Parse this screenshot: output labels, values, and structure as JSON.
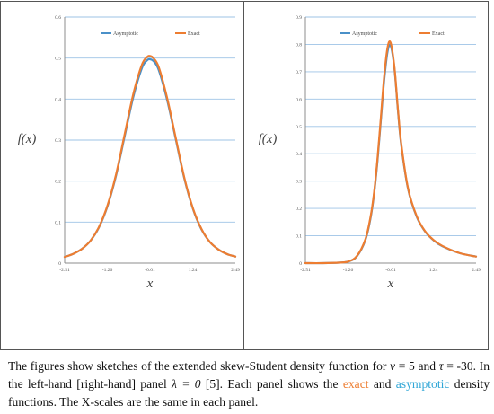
{
  "colors": {
    "asymptotic": "#4a90c8",
    "exact": "#ed7d31",
    "gridline": "#9dc3e6",
    "caption_exact": "#ed7d31",
    "caption_asymptotic": "#2fa6d6"
  },
  "chart_data": [
    {
      "type": "line",
      "title": "",
      "xlabel": "x",
      "ylabel": "f(x)",
      "xlim": [
        -2.51,
        2.49
      ],
      "ylim": [
        0,
        0.6
      ],
      "x_ticks": [
        "-2.51",
        "-1.26",
        "-0.01",
        "1.24",
        "2.49"
      ],
      "y_ticks": [
        "0",
        "0.1",
        "0.2",
        "0.3",
        "0.4",
        "0.5",
        "0.6"
      ],
      "grid": "horizontal",
      "legend_position": "top",
      "x": [
        -2.51,
        -2.25,
        -2.0,
        -1.75,
        -1.5,
        -1.25,
        -1.0,
        -0.75,
        -0.5,
        -0.25,
        -0.1,
        -0.01,
        0.1,
        0.25,
        0.5,
        0.75,
        1.0,
        1.25,
        1.5,
        1.75,
        2.0,
        2.25,
        2.49
      ],
      "series": [
        {
          "name": "Asymptotic",
          "values": [
            0.015,
            0.023,
            0.035,
            0.055,
            0.088,
            0.14,
            0.215,
            0.31,
            0.405,
            0.475,
            0.494,
            0.497,
            0.492,
            0.47,
            0.395,
            0.3,
            0.205,
            0.132,
            0.082,
            0.051,
            0.033,
            0.022,
            0.016
          ]
        },
        {
          "name": "Exact",
          "values": [
            0.015,
            0.023,
            0.035,
            0.055,
            0.089,
            0.142,
            0.218,
            0.315,
            0.412,
            0.483,
            0.502,
            0.505,
            0.499,
            0.477,
            0.4,
            0.303,
            0.207,
            0.133,
            0.083,
            0.051,
            0.033,
            0.022,
            0.016
          ]
        }
      ]
    },
    {
      "type": "line",
      "title": "",
      "xlabel": "x",
      "ylabel": "f(x)",
      "xlim": [
        -2.51,
        2.49
      ],
      "ylim": [
        0,
        0.9
      ],
      "x_ticks": [
        "-2.51",
        "-1.26",
        "-0.01",
        "1.24",
        "2.49"
      ],
      "y_ticks": [
        "0",
        "0.1",
        "0.2",
        "0.3",
        "0.4",
        "0.5",
        "0.6",
        "0.7",
        "0.8",
        "0.9"
      ],
      "grid": "horizontal",
      "legend_position": "top",
      "x": [
        -2.51,
        -2.0,
        -1.5,
        -1.25,
        -1.0,
        -0.75,
        -0.6,
        -0.5,
        -0.4,
        -0.3,
        -0.2,
        -0.1,
        -0.01,
        0.1,
        0.2,
        0.3,
        0.5,
        0.75,
        1.0,
        1.25,
        1.5,
        2.0,
        2.49
      ],
      "series": [
        {
          "name": "Asymptotic",
          "values": [
            0.0,
            0.0,
            0.002,
            0.006,
            0.025,
            0.085,
            0.165,
            0.25,
            0.37,
            0.52,
            0.67,
            0.775,
            0.795,
            0.71,
            0.56,
            0.43,
            0.27,
            0.17,
            0.115,
            0.083,
            0.062,
            0.037,
            0.024
          ]
        },
        {
          "name": "Exact",
          "values": [
            0.0,
            0.0,
            0.002,
            0.006,
            0.026,
            0.088,
            0.17,
            0.255,
            0.378,
            0.53,
            0.685,
            0.79,
            0.805,
            0.715,
            0.565,
            0.435,
            0.272,
            0.172,
            0.116,
            0.084,
            0.063,
            0.037,
            0.024
          ]
        }
      ]
    }
  ],
  "caption": {
    "p1": "The figures show sketches of the extended skew-Student density function for ",
    "nu_sym": "ν",
    "p2": " = 5 and ",
    "tau_sym": "τ",
    "p3": " = -30. In the left-hand [right-hand] panel ",
    "lambda_expr": "λ = 0",
    "p4": " [5]. Each panel shows the ",
    "exact_word": "exact",
    "p5": " and ",
    "asym_word": "asymptotic",
    "p6": " density functions. The X-scales are the same in each panel."
  }
}
